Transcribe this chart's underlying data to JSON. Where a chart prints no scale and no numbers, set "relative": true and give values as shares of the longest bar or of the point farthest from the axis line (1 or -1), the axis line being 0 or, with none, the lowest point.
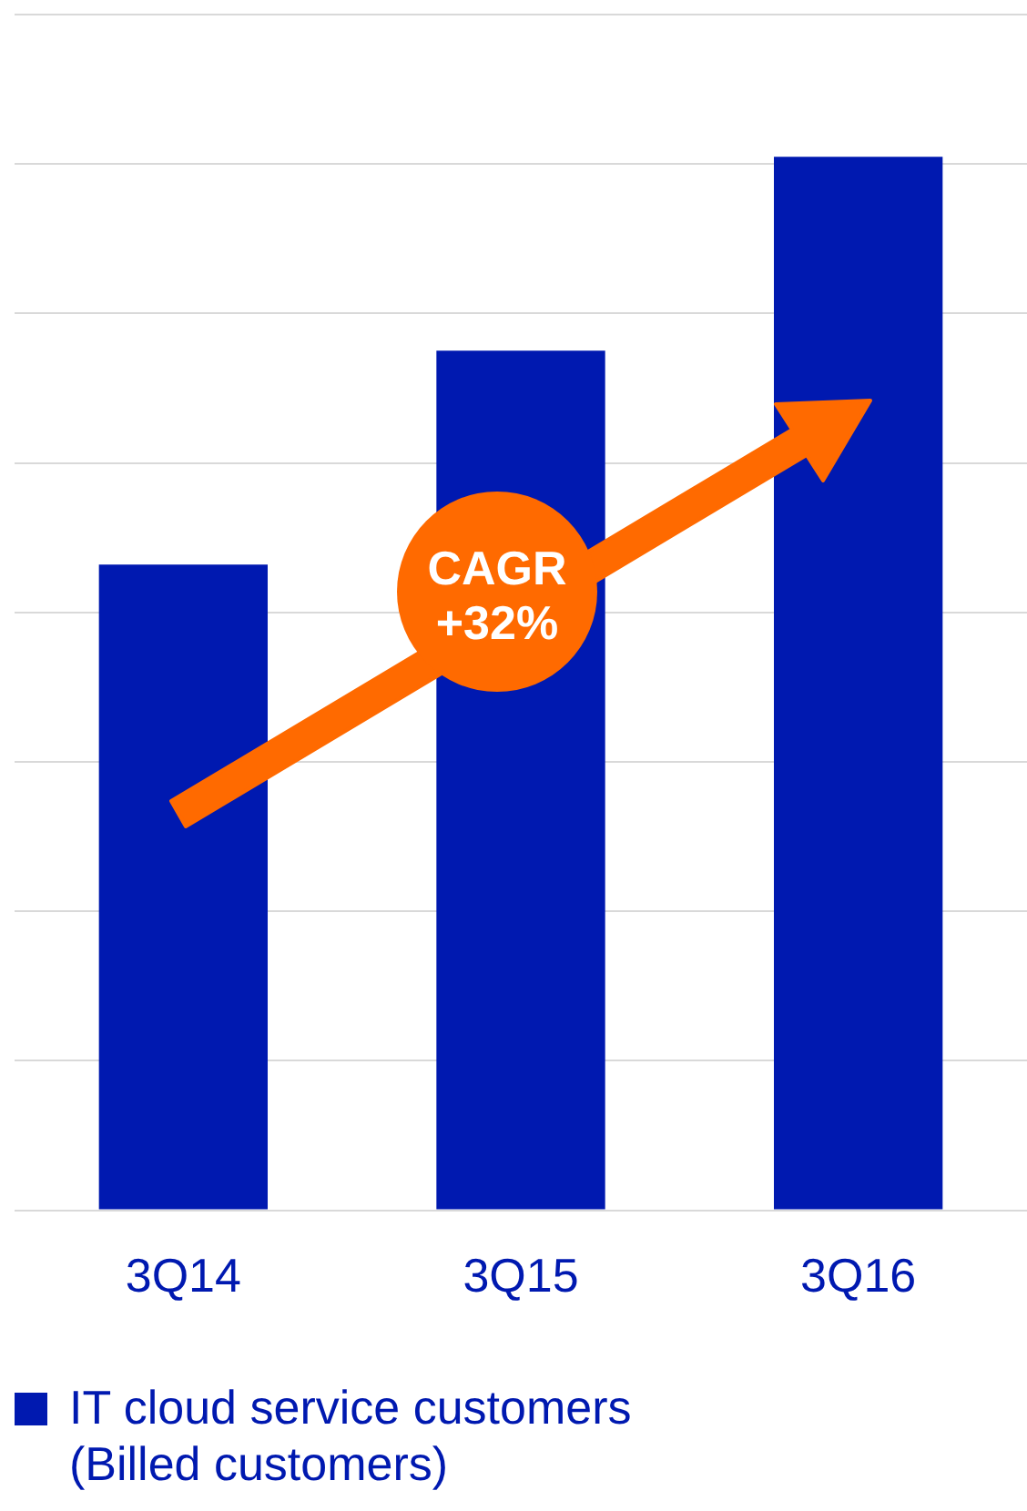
{
  "chart_data": {
    "type": "bar",
    "relative": true,
    "categories": [
      "3Q14",
      "3Q15",
      "3Q16"
    ],
    "series": [
      {
        "name": "IT cloud service customers (Billed customers)",
        "color": "#0019b0",
        "values": [
          0.613,
          0.816,
          1
        ]
      }
    ],
    "annotations": [
      "CAGR +32%"
    ],
    "grid": "y",
    "legend": "bottom"
  }
}
